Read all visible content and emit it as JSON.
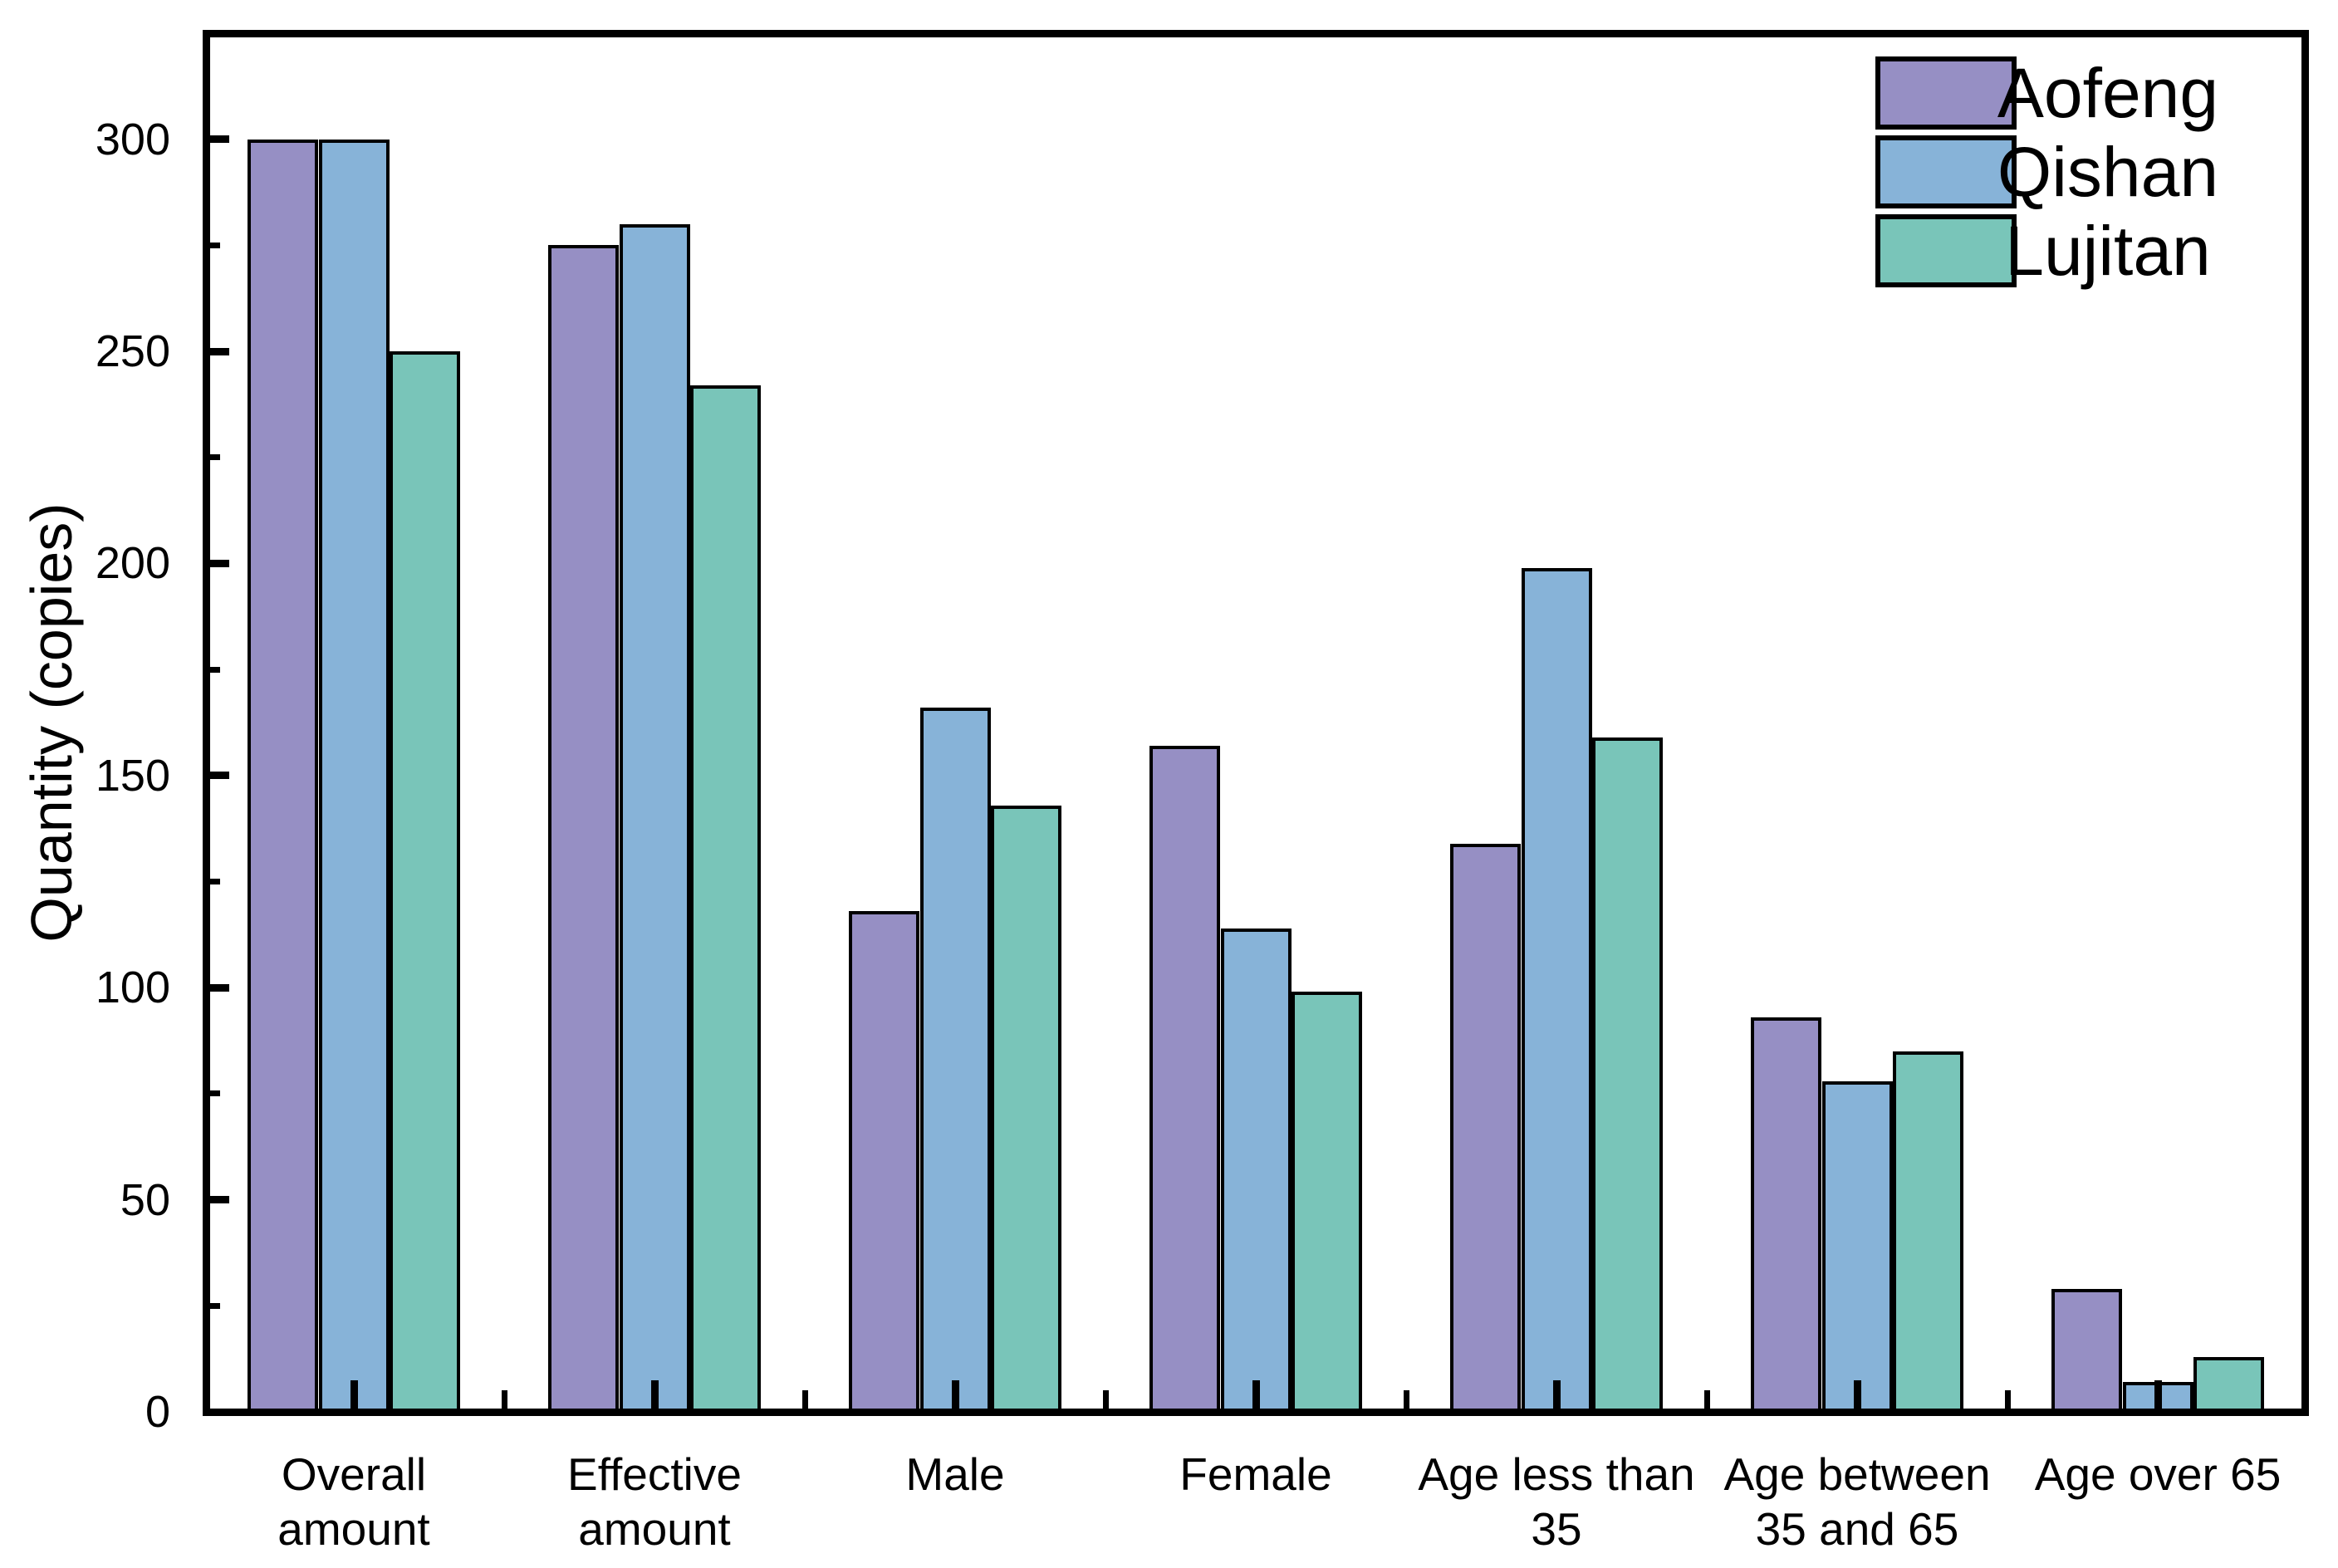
{
  "chart_data": {
    "type": "bar",
    "title": "",
    "xlabel": "",
    "ylabel": "Quantity (copies)",
    "ylim": [
      0,
      325
    ],
    "yticks": [
      0,
      50,
      100,
      150,
      200,
      250,
      300
    ],
    "yticks_minor": [
      25,
      75,
      125,
      175,
      225,
      275
    ],
    "grid": false,
    "legend_position": "top-right-inside",
    "background": "#FFFFFF",
    "ink_color": "#000000",
    "categories": [
      "Overall amount",
      "Effective amount",
      "Male",
      "Female",
      "Age less than 35",
      "Age between 35 and 65",
      "Age over 65"
    ],
    "category_label_lines": [
      [
        "Overall",
        "amount"
      ],
      [
        "Effective",
        "amount"
      ],
      [
        "Male"
      ],
      [
        "Female"
      ],
      [
        "Age less than",
        "35"
      ],
      [
        "Age between",
        "35 and 65"
      ],
      [
        "Age over 65"
      ]
    ],
    "series": [
      {
        "name": "Aofeng",
        "color": "#968FC4",
        "values": [
          300,
          275,
          118,
          157,
          134,
          93,
          29
        ]
      },
      {
        "name": "Qishan",
        "color": "#87B3D8",
        "values": [
          300,
          280,
          166,
          114,
          199,
          78,
          7
        ]
      },
      {
        "name": "Lujitan",
        "color": "#79C5B9",
        "values": [
          250,
          242,
          143,
          99,
          159,
          85,
          13
        ]
      }
    ]
  }
}
